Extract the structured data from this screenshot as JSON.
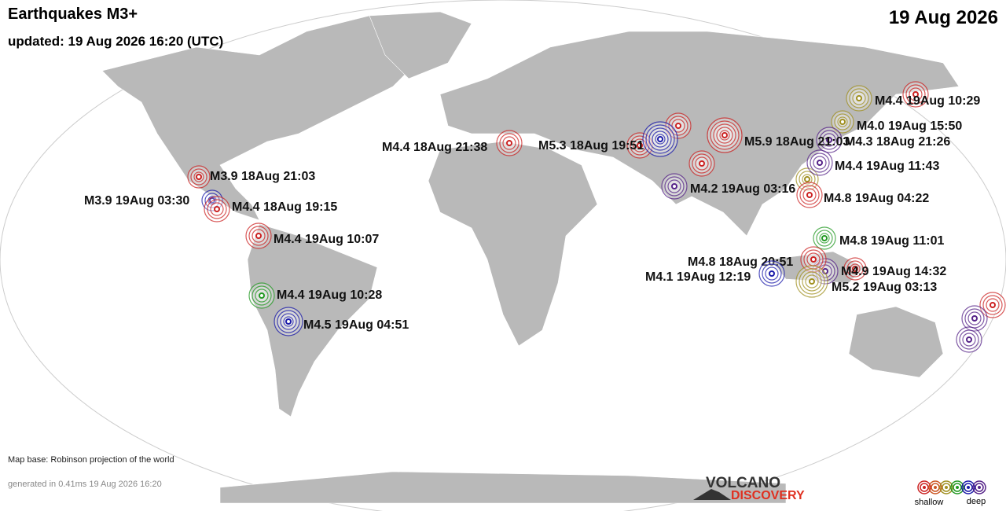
{
  "header": {
    "title": "Earthquakes M3+",
    "updated": "updated: 19 Aug 2026 16:20 (UTC)",
    "date": "19 Aug 2026"
  },
  "quakes": [
    {
      "label": "M4.4 19Aug 10:29",
      "color": "#cc2222"
    },
    {
      "label": "M4.0 19Aug 15:50",
      "color": "#a09020"
    },
    {
      "label": "M4.3 18Aug 21:26",
      "color": "#552288"
    },
    {
      "label": "M5.9 18Aug 21:03",
      "color": "#cc2222"
    },
    {
      "label": "M5.3 18Aug 19:51",
      "color": "#1a1aaa"
    },
    {
      "label": "M4.4 18Aug 21:38",
      "color": "#cc2222"
    },
    {
      "label": "M4.4 19Aug 11:43",
      "color": "#552288"
    },
    {
      "label": "M4.2 19Aug 03:16",
      "color": "#552288"
    },
    {
      "label": "M4.8 19Aug 04:22",
      "color": "#cc2222"
    },
    {
      "label": "M4.8 19Aug 11:01",
      "color": "#229922"
    },
    {
      "label": "M4.8 18Aug 20:51",
      "color": "#cc2222"
    },
    {
      "label": "M4.1 19Aug 12:19",
      "color": "#1a1aaa"
    },
    {
      "label": "M4.9 19Aug 14:32",
      "color": "#cc2222"
    },
    {
      "label": "M5.2 19Aug 03:13",
      "color": "#a09020"
    },
    {
      "label": "M3.9 18Aug 21:03",
      "color": "#cc2222"
    },
    {
      "label": "M3.9 19Aug 03:30",
      "color": "#1a1aaa"
    },
    {
      "label": "M4.4 18Aug 19:15",
      "color": "#cc2222"
    },
    {
      "label": "M4.4 19Aug 10:07",
      "color": "#cc2222"
    },
    {
      "label": "M4.4 19Aug 10:28",
      "color": "#229922"
    },
    {
      "label": "M4.5 19Aug 04:51",
      "color": "#1a1aaa"
    }
  ],
  "footer": {
    "map_base": "Map base: Robinson projection of the world",
    "generated": "generated in 0.41ms 19 Aug 2026 16:20"
  },
  "logo": {
    "line1": "VOLCANO",
    "line2": "DISCOVERY"
  },
  "legend": {
    "shallow": "shallow",
    "deep": "deep"
  }
}
